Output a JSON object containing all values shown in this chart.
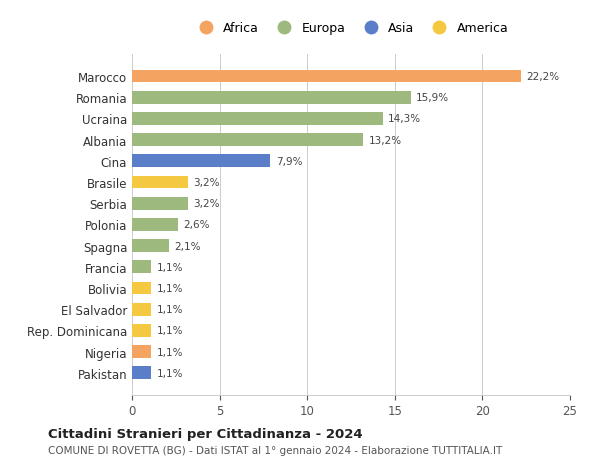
{
  "countries": [
    "Pakistan",
    "Nigeria",
    "Rep. Dominicana",
    "El Salvador",
    "Bolivia",
    "Francia",
    "Spagna",
    "Polonia",
    "Serbia",
    "Brasile",
    "Cina",
    "Albania",
    "Ucraina",
    "Romania",
    "Marocco"
  ],
  "values": [
    1.1,
    1.1,
    1.1,
    1.1,
    1.1,
    1.1,
    2.1,
    2.6,
    3.2,
    3.2,
    7.9,
    13.2,
    14.3,
    15.9,
    22.2
  ],
  "labels": [
    "1,1%",
    "1,1%",
    "1,1%",
    "1,1%",
    "1,1%",
    "1,1%",
    "2,1%",
    "2,6%",
    "3,2%",
    "3,2%",
    "7,9%",
    "13,2%",
    "14,3%",
    "15,9%",
    "22,2%"
  ],
  "bar_colors": [
    "#5B7EC9",
    "#F4A460",
    "#F5C842",
    "#F5C842",
    "#F5C842",
    "#9DB97D",
    "#9DB97D",
    "#9DB97D",
    "#9DB97D",
    "#F5C842",
    "#5B7EC9",
    "#9DB97D",
    "#9DB97D",
    "#9DB97D",
    "#F4A460"
  ],
  "legend_items": [
    "Africa",
    "Europa",
    "Asia",
    "America"
  ],
  "legend_colors": [
    "#F4A460",
    "#9DB97D",
    "#5B7EC9",
    "#F5C842"
  ],
  "title": "Cittadini Stranieri per Cittadinanza - 2024",
  "subtitle": "COMUNE DI ROVETTA (BG) - Dati ISTAT al 1° gennaio 2024 - Elaborazione TUTTITALIA.IT",
  "xlim": [
    0,
    25
  ],
  "xticks": [
    0,
    5,
    10,
    15,
    20,
    25
  ],
  "background_color": "#ffffff",
  "grid_color": "#cccccc",
  "bar_height": 0.6
}
